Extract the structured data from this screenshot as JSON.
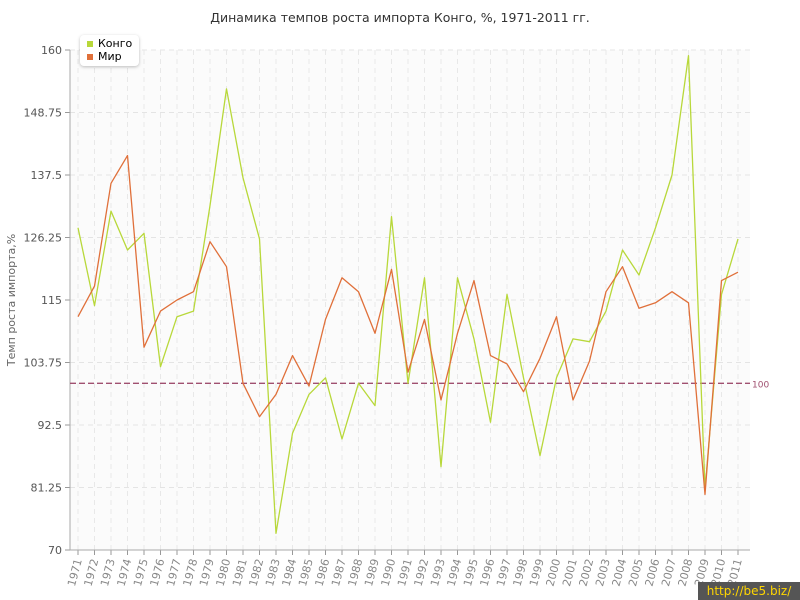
{
  "title": "Динамика темпов роста импорта Конго, %, 1971-2011 гг.",
  "watermark": "http://be5.biz/",
  "colors": {
    "kongo": "#b8d83a",
    "mir": "#e0703a",
    "reference": "#a05070"
  },
  "chart_data": {
    "type": "line",
    "title": "Динамика темпов роста импорта Конго, %, 1971-2011 гг.",
    "xlabel": "",
    "ylabel": "Темп роста импорта,%",
    "ylim": [
      70,
      160
    ],
    "yticks": [
      "70",
      "81.25",
      "92.5",
      "103.75",
      "115",
      "126.25",
      "137.5",
      "148.75",
      "160"
    ],
    "categories": [
      "1971",
      "1972",
      "1973",
      "1974",
      "1975",
      "1976",
      "1977",
      "1978",
      "1979",
      "1980",
      "1981",
      "1982",
      "1983",
      "1984",
      "1985",
      "1986",
      "1987",
      "1988",
      "1989",
      "1990",
      "1991",
      "1992",
      "1993",
      "1994",
      "1995",
      "1996",
      "1997",
      "1998",
      "1999",
      "2000",
      "2001",
      "2002",
      "2003",
      "2004",
      "2005",
      "2006",
      "2007",
      "2008",
      "2009",
      "2010",
      "2011"
    ],
    "series": [
      {
        "name": "Конго",
        "values": [
          128,
          114,
          131,
          124,
          127,
          103,
          112,
          113,
          132,
          153,
          137,
          126,
          73,
          91,
          98,
          101,
          90,
          100,
          96,
          130,
          100,
          119,
          85,
          119,
          108,
          93,
          116,
          101,
          87,
          101,
          108,
          107.5,
          113,
          124,
          119.5,
          128,
          137.5,
          159,
          81,
          116,
          126
        ]
      },
      {
        "name": "Мир",
        "values": [
          112,
          117.5,
          136,
          141,
          106.5,
          113,
          115,
          116.5,
          125.5,
          121,
          100,
          94,
          98,
          105,
          99.5,
          111.5,
          119,
          116.5,
          109,
          120.5,
          102,
          111.5,
          97,
          109,
          118.5,
          105,
          103.5,
          98.5,
          104.5,
          112,
          97,
          104,
          116.5,
          121,
          113.5,
          114.5,
          116.5,
          114.5,
          80,
          118.5,
          120
        ]
      }
    ],
    "reference_line": {
      "value": 100,
      "label": "100"
    },
    "grid": true,
    "legend_position": "top-left"
  }
}
